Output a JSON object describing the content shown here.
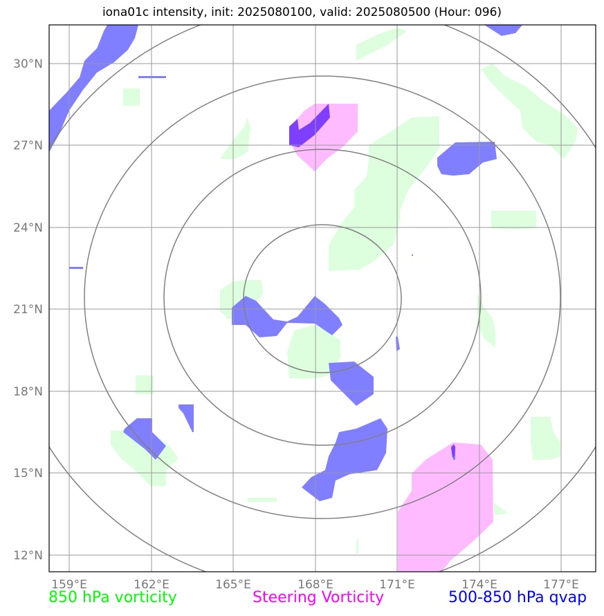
{
  "title": "iona01c intensity, init: 2025080100, valid: 2025080500 (Hour: 096)",
  "lon_ticks": [
    "159°E",
    "162°E",
    "165°E",
    "168°E",
    "171°E",
    "174°E",
    "177°E"
  ],
  "lat_ticks": [
    "30°N",
    "27°N",
    "24°N",
    "21°N",
    "18°N",
    "15°N",
    "12°N"
  ],
  "legend": [
    {
      "label": "850 hPa vorticity",
      "color": "#00ff00"
    },
    {
      "label": "Steering Vorticity",
      "color": "#ff00ff"
    },
    {
      "label": "500-850 hPa qvap",
      "color": "#0000ff"
    }
  ],
  "colors": {
    "green_fill": "#ddffdd",
    "magenta_fill": "#ffbbff",
    "blue_fill": "#7f7fff",
    "overlap_fill": "#7f3fff",
    "grid": "#999999",
    "range_rings": "#808080"
  },
  "map": {
    "lon_range": [
      158.2,
      178.3
    ],
    "lat_range": [
      11.3,
      31.5
    ],
    "center": {
      "lon": 168.2,
      "lat": 21.6
    },
    "range_rings": 4
  }
}
